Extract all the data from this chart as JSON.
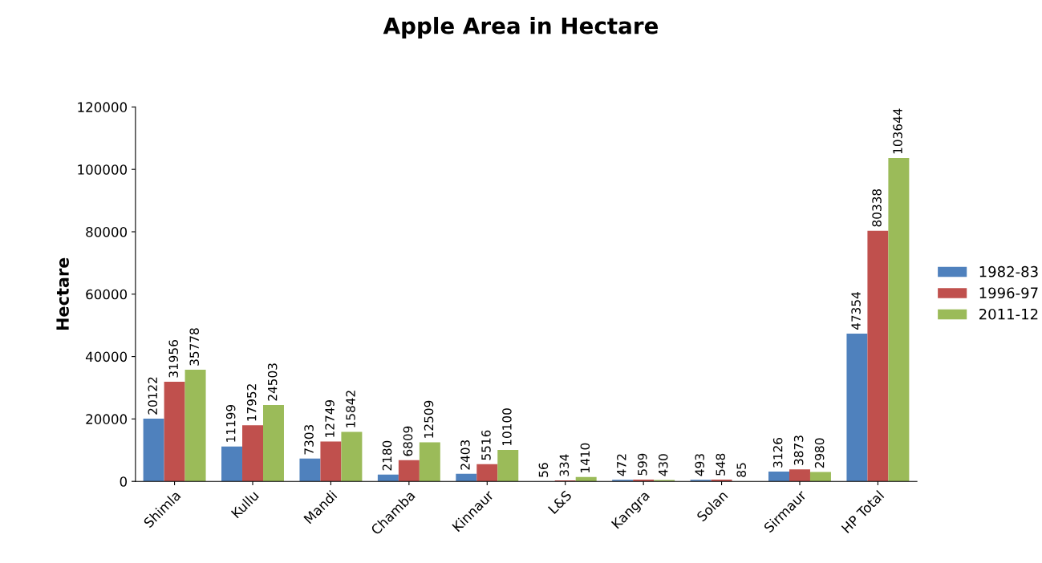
{
  "chart_data": {
    "type": "bar",
    "title": "Apple Area in Hectare",
    "ylabel": "Hectare",
    "categories": [
      "Shimla",
      "Kullu",
      "Mandi",
      "Chamba",
      "Kinnaur",
      "L&S",
      "Kangra",
      "Solan",
      "Sirmaur",
      "HP Total"
    ],
    "series": [
      {
        "name": "1982-83",
        "color": "#4f81bd",
        "values": [
          20122,
          11199,
          7303,
          2180,
          2403,
          56,
          472,
          493,
          3126,
          47354
        ]
      },
      {
        "name": "1996-97",
        "color": "#c0504d",
        "values": [
          31956,
          17952,
          12749,
          6809,
          5516,
          334,
          599,
          548,
          3873,
          80338
        ]
      },
      {
        "name": "2011-12",
        "color": "#9bbb59",
        "values": [
          35778,
          24503,
          15842,
          12509,
          10100,
          1410,
          430,
          85,
          2980,
          103644
        ]
      }
    ],
    "ylim": [
      0,
      120000
    ],
    "yticks": [
      0,
      20000,
      40000,
      60000,
      80000,
      100000,
      120000
    ],
    "data_labels": true,
    "grid": false,
    "legend": "right"
  }
}
